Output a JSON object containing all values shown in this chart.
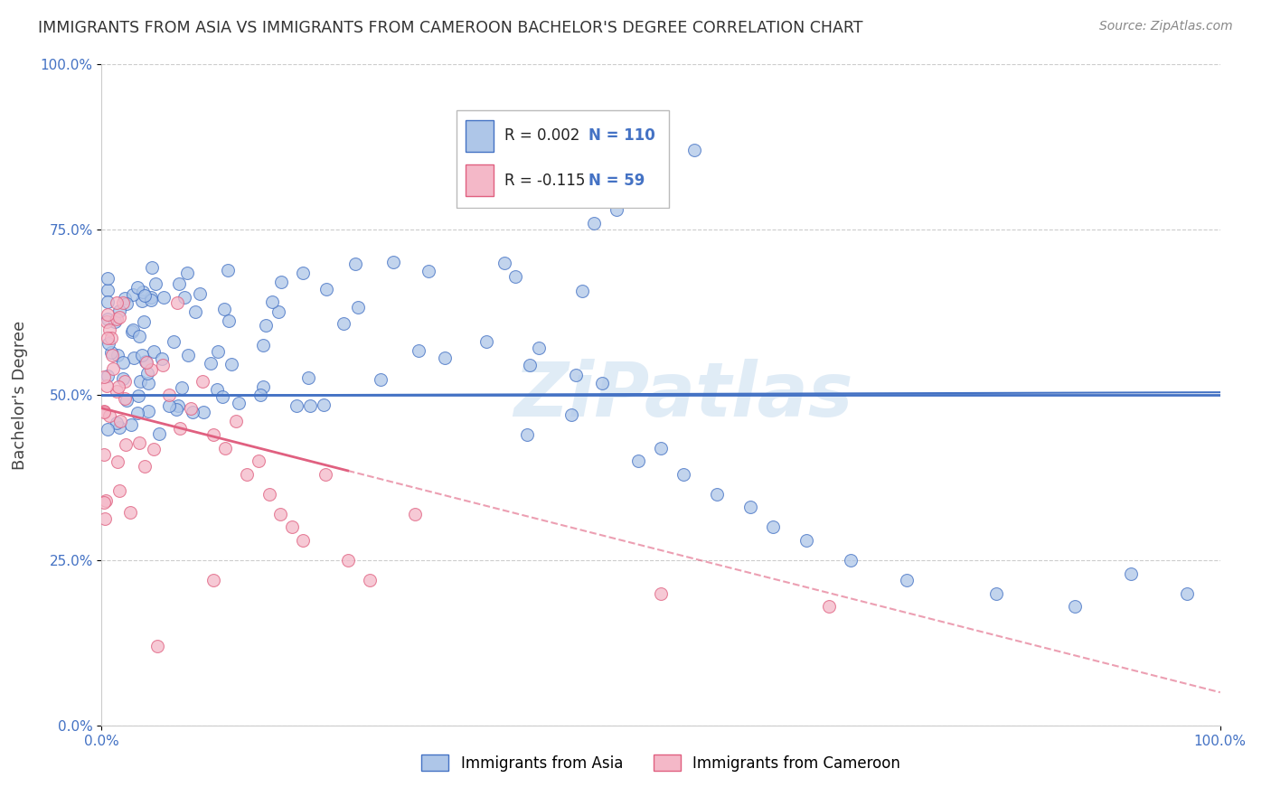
{
  "title": "IMMIGRANTS FROM ASIA VS IMMIGRANTS FROM CAMEROON BACHELOR'S DEGREE CORRELATION CHART",
  "source": "Source: ZipAtlas.com",
  "ylabel": "Bachelor's Degree",
  "xlim": [
    0.0,
    1.0
  ],
  "ylim": [
    0.0,
    1.0
  ],
  "y_tick_positions": [
    0.0,
    0.25,
    0.5,
    0.75,
    1.0
  ],
  "horizontal_line_y": 0.5,
  "asia_color": "#aec6e8",
  "asia_edge_color": "#4472c4",
  "cameroon_color": "#f4b8c8",
  "cameroon_edge_color": "#e06080",
  "asia_R": "0.002",
  "asia_N": "110",
  "cameroon_R": "-0.115",
  "cameroon_N": "59",
  "background_color": "#ffffff",
  "grid_color": "#cccccc",
  "watermark_text": "ZiPatlas",
  "marker_size": 100
}
